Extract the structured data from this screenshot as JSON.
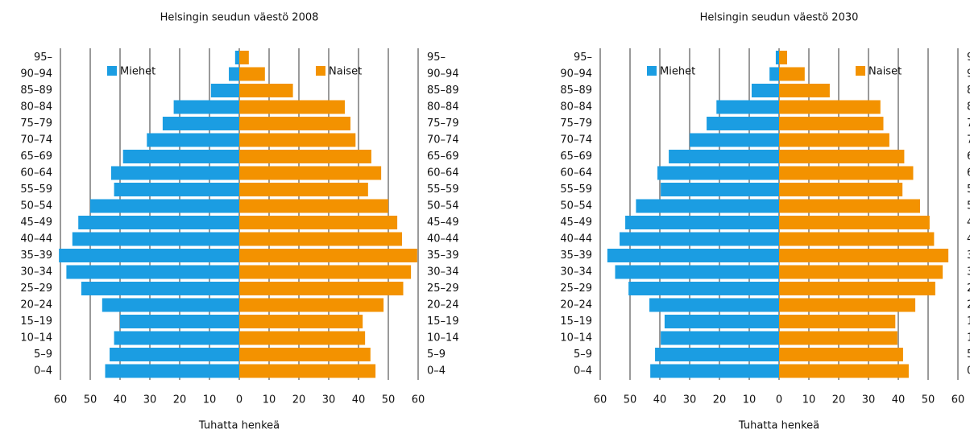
{
  "chart_data": [
    {
      "type": "pyramid",
      "title": "Helsingin seudun väestö 2008",
      "x_label": "Tuhatta henkeä",
      "categories": [
        "0–4",
        "5–9",
        "10–14",
        "15–19",
        "20–24",
        "25–29",
        "30–34",
        "35–39",
        "40–44",
        "45–49",
        "50–54",
        "55–59",
        "60–64",
        "65–69",
        "70–74",
        "75–79",
        "80–84",
        "85–89",
        "90–94",
        "95–"
      ],
      "series": [
        {
          "name": "Miehet",
          "color": "#1b9de2",
          "values": [
            -45,
            -43.5,
            -42,
            -40,
            -46,
            -53,
            -58,
            -60.5,
            -56,
            -54,
            -50,
            -42,
            -43,
            -39,
            -31,
            -25.7,
            -22,
            -9.5,
            -3.5,
            -1.4
          ]
        },
        {
          "name": "Naiset",
          "color": "#f39200",
          "values": [
            45.7,
            44,
            42.2,
            41.4,
            48.4,
            55,
            57.6,
            59.7,
            54.6,
            53,
            50,
            43.2,
            47.6,
            44.3,
            39,
            37.3,
            35.4,
            18,
            8.6,
            3.2
          ]
        }
      ],
      "xlim": [
        -60,
        60
      ],
      "xticks": [
        {
          "value": -60,
          "label": "60"
        },
        {
          "value": -50,
          "label": "50"
        },
        {
          "value": -40,
          "label": "40"
        },
        {
          "value": -30,
          "label": "30"
        },
        {
          "value": -20,
          "label": "20"
        },
        {
          "value": -10,
          "label": "10"
        },
        0,
        10,
        20,
        30,
        40,
        50,
        60
      ],
      "grid": true
    },
    {
      "type": "pyramid",
      "title": "Helsingin seudun väestö 2030",
      "x_label": "Tuhatta henkeä",
      "categories": [
        "0–4",
        "5–9",
        "10–14",
        "15–19",
        "20–24",
        "25–29",
        "30–34",
        "35–39",
        "40–44",
        "45–49",
        "50–54",
        "55–59",
        "60–64",
        "65–69",
        "70–74",
        "75–79",
        "80–84",
        "85–89",
        "90–94",
        "95–"
      ],
      "series": [
        {
          "name": "Miehet",
          "color": "#1b9de2",
          "values": [
            -43.2,
            -41.6,
            -39.7,
            -38.4,
            -43.5,
            -50.5,
            -55,
            -57.6,
            -53.5,
            -51.6,
            -48,
            -39.7,
            -40.8,
            -37,
            -30,
            -24.3,
            -21,
            -9.2,
            -3.2,
            -1.1
          ]
        },
        {
          "name": "Naiset",
          "color": "#f39200",
          "values": [
            43.5,
            41.6,
            39.7,
            39,
            45.7,
            52.4,
            54.9,
            56.8,
            52,
            50.5,
            47.3,
            41.4,
            45,
            42,
            37,
            35,
            34,
            17,
            8.6,
            2.7
          ]
        }
      ],
      "xlim": [
        -60,
        60
      ],
      "xticks": [
        {
          "value": -60,
          "label": "60"
        },
        {
          "value": -50,
          "label": "50"
        },
        {
          "value": -40,
          "label": "40"
        },
        {
          "value": -30,
          "label": "30"
        },
        {
          "value": -20,
          "label": "20"
        },
        {
          "value": -10,
          "label": "10"
        },
        0,
        10,
        20,
        30,
        40,
        50,
        60
      ],
      "grid": true
    }
  ]
}
